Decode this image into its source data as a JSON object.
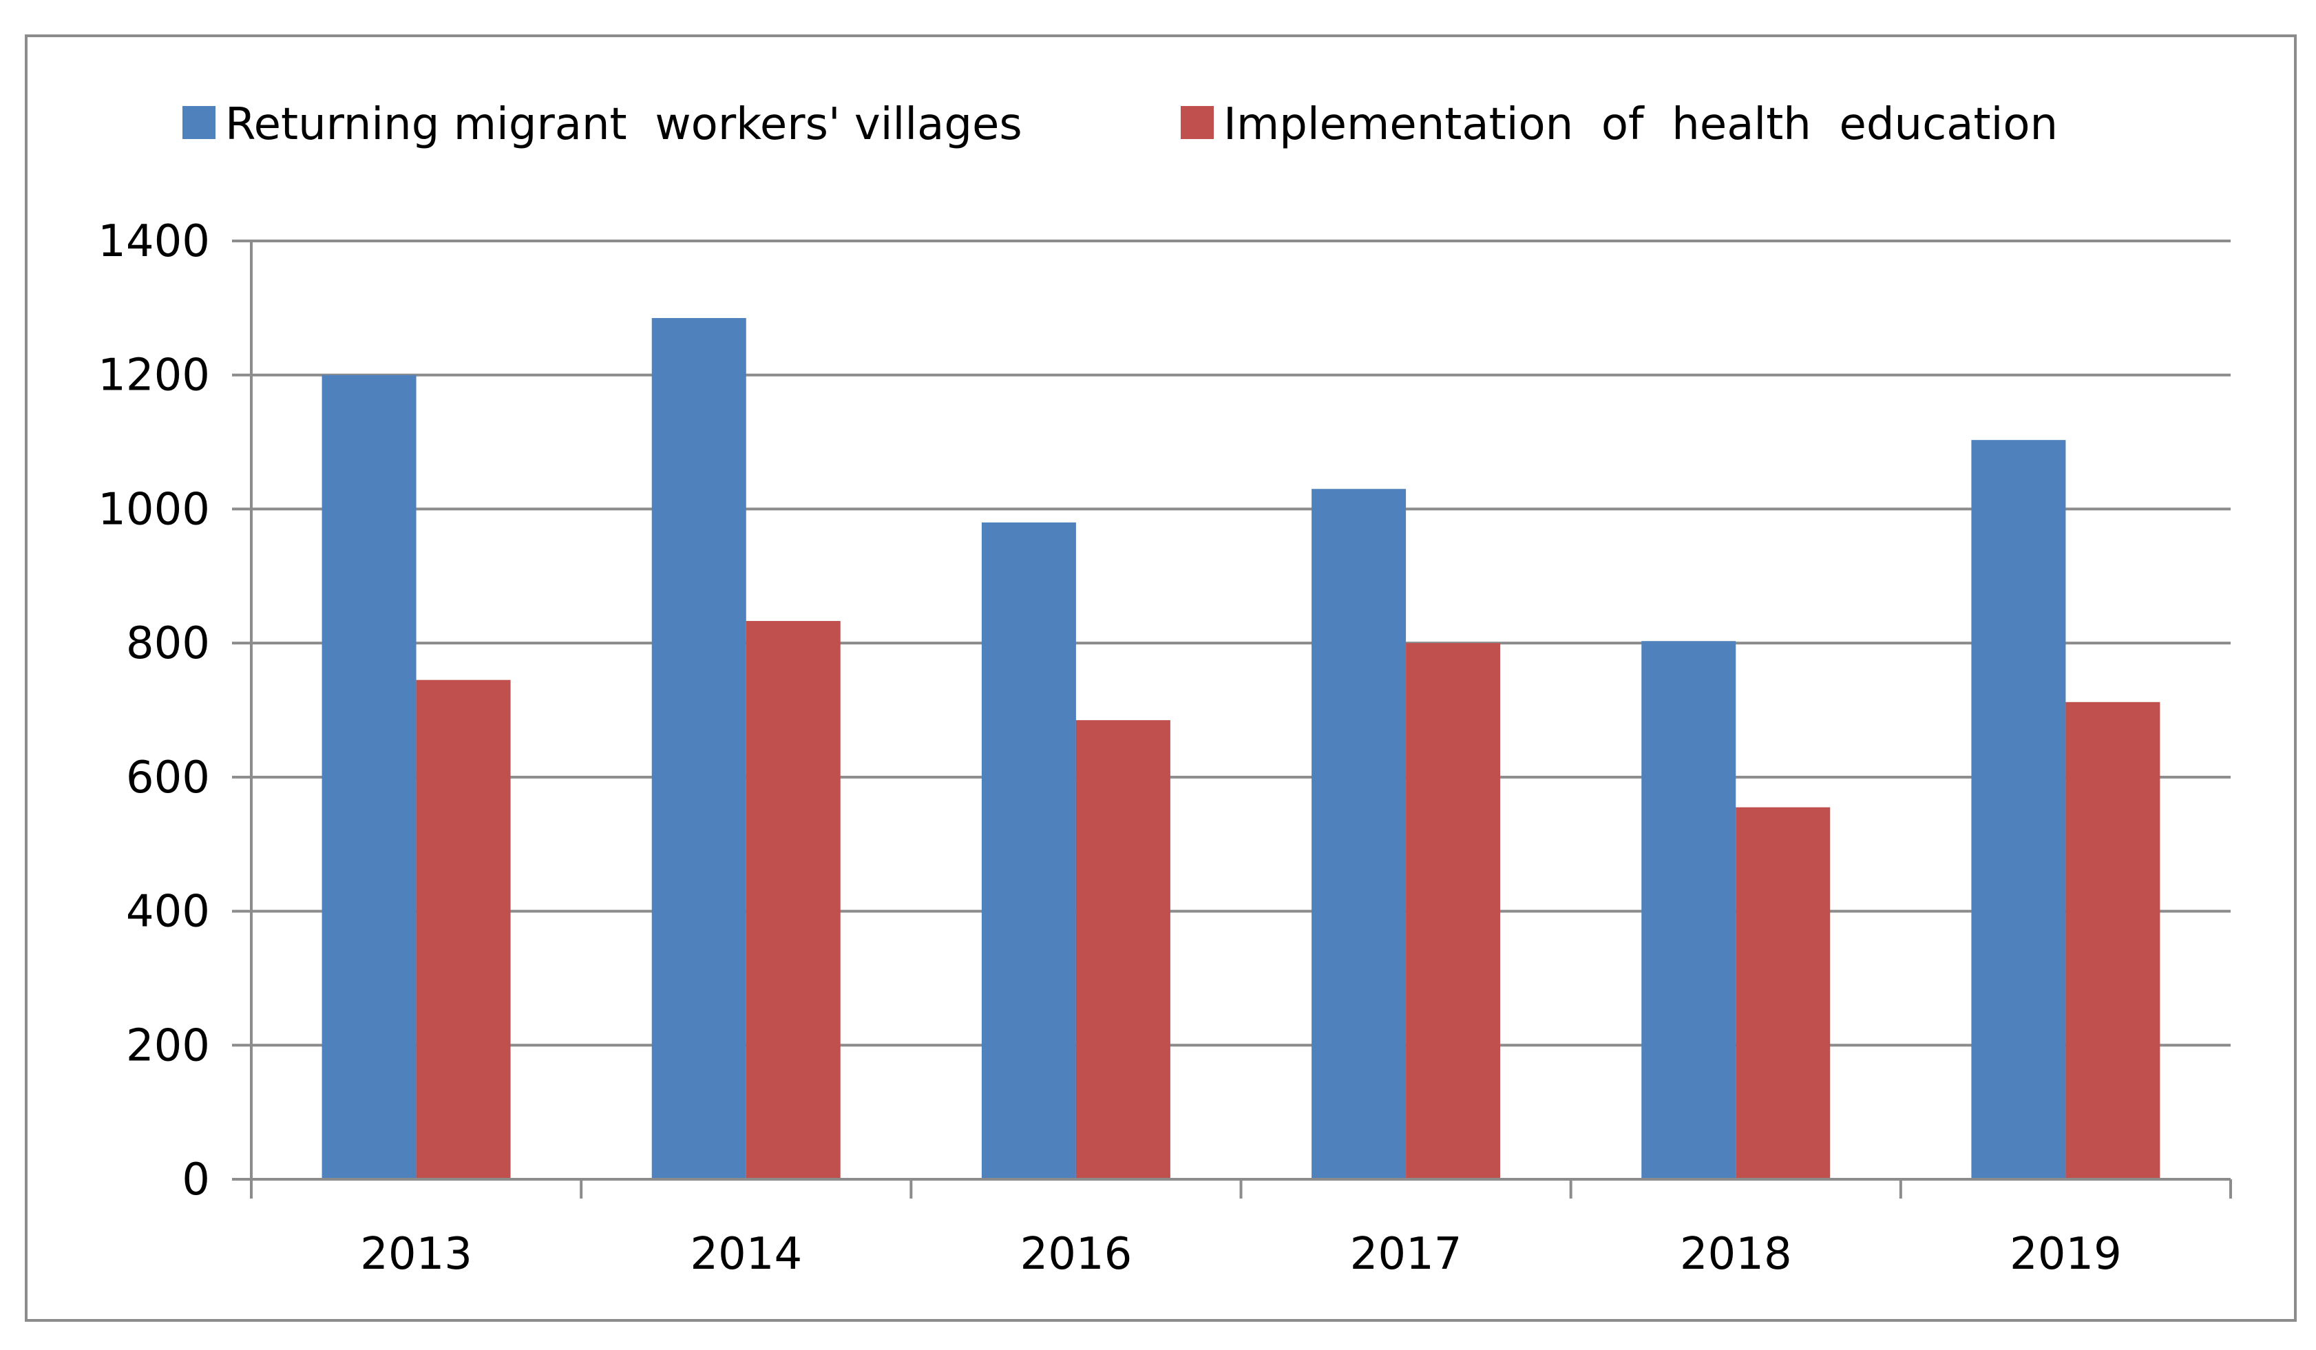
{
  "chart_data": {
    "type": "bar",
    "categories": [
      "2013",
      "2014",
      "2016",
      "2017",
      "2018",
      "2019"
    ],
    "series": [
      {
        "name": "Returning migrant  workers' villages",
        "color": "#4f81bd",
        "values": [
          1200,
          1285,
          980,
          1030,
          803,
          1103
        ]
      },
      {
        "name": "Implementation  of  health  education",
        "color": "#c0504d",
        "values": [
          745,
          833,
          685,
          800,
          555,
          712
        ]
      }
    ],
    "yticks": [
      0,
      200,
      400,
      600,
      800,
      1000,
      1200,
      1400
    ],
    "ylim": [
      0,
      1400
    ],
    "grid": true,
    "legend_position": "top-center"
  }
}
